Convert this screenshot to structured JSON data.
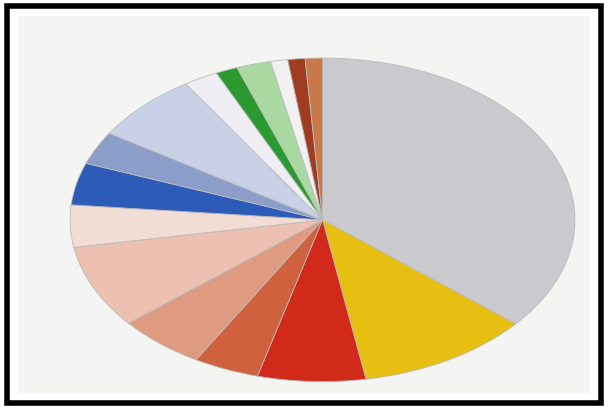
{
  "chart_data": {
    "type": "pie",
    "values": [
      36.1,
      11.1,
      6.9,
      4.2,
      5.6,
      8.3,
      4.2,
      4.2,
      3.3,
      6.9,
      2.2,
      1.4,
      2.2,
      1.1,
      1.1,
      1.1
    ],
    "colors": [
      "#c9c9ce",
      "#e6bf12",
      "#d22a1a",
      "#cf613e",
      "#df9b82",
      "#ecc1b1",
      "#f2ddd5",
      "#2d5bb8",
      "#8b9dc9",
      "#c9d1e9",
      "#eeeef4",
      "#2a9a30",
      "#a9d8a1",
      "#f1f1f1",
      "#a03c20",
      "#c8784a"
    ]
  }
}
